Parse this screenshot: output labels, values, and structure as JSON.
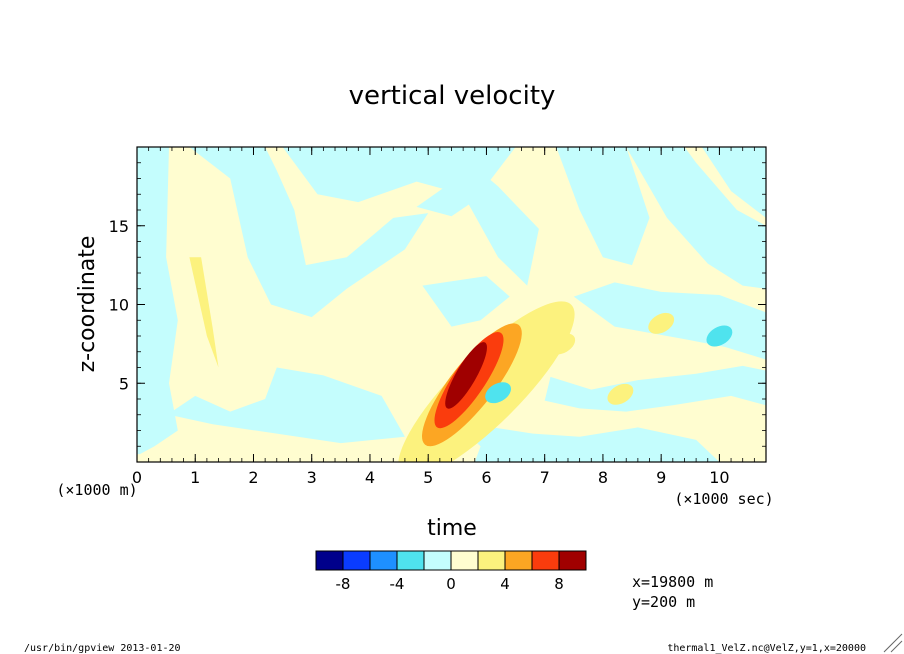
{
  "chart_data": {
    "type": "heatmap",
    "title": "vertical velocity",
    "xlabel": "time",
    "ylabel": "z-coordinate",
    "x_unit": "(×1000 sec)",
    "y_unit": "(×1000 m)",
    "xlim": [
      0,
      10.8
    ],
    "ylim": [
      0,
      20
    ],
    "x_ticks": [
      "0",
      "1",
      "2",
      "3",
      "4",
      "5",
      "6",
      "7",
      "8",
      "9",
      "10"
    ],
    "y_ticks": [
      "5",
      "10",
      "15"
    ],
    "colorbar": {
      "levels": [
        -10,
        -8,
        -6,
        -4,
        -2,
        0,
        2,
        4,
        6,
        8,
        10
      ],
      "tick_labels": [
        "-8",
        "-4",
        "0",
        "4",
        "8"
      ],
      "colors": [
        "#00008b",
        "#0a3cff",
        "#1e90ff",
        "#4fe3ee",
        "#c4fdfd",
        "#fffdd0",
        "#fcf27e",
        "#fca623",
        "#fa3c0d",
        "#a00000"
      ]
    },
    "features": [
      {
        "x": 5.6,
        "y": 5.6,
        "value": 9
      },
      {
        "x": 6.2,
        "y": 4.4,
        "value": -2.5
      },
      {
        "x": 9.0,
        "y": 8.8,
        "value": 2.5
      },
      {
        "x": 8.3,
        "y": 4.3,
        "value": 2.5
      },
      {
        "x": 7.3,
        "y": 7.5,
        "value": 2.5
      },
      {
        "x": 10.0,
        "y": 8.0,
        "value": -3
      }
    ],
    "annotations": [
      "x=19800 m",
      "y=200 m"
    ]
  },
  "footer": {
    "left": "/usr/bin/gpview  2013-01-20",
    "right": "thermal1_VelZ.nc@VelZ,y=1,x=20000"
  }
}
